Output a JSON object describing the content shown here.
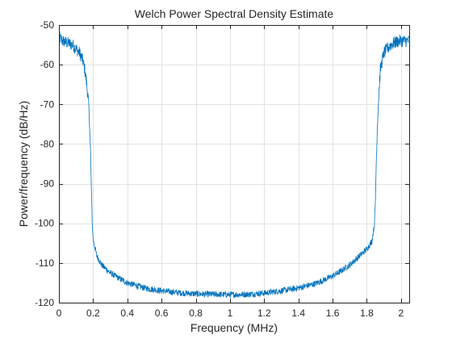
{
  "chart_data": {
    "type": "line",
    "title": "Welch Power Spectral Density Estimate",
    "xlabel": "Frequency (MHz)",
    "ylabel": "Power/frequency (dB/Hz)",
    "xlim": [
      0,
      2.048
    ],
    "ylim": [
      -120,
      -50
    ],
    "grid": true,
    "xticks": [
      0,
      0.2,
      0.4,
      0.6,
      0.8,
      1,
      1.2,
      1.4,
      1.6,
      1.8,
      2
    ],
    "xtick_labels": [
      "0",
      "0.2",
      "0.4",
      "0.6",
      "0.8",
      "1",
      "1.2",
      "1.4",
      "1.6",
      "1.8",
      "2"
    ],
    "yticks": [
      -120,
      -110,
      -100,
      -90,
      -80,
      -70,
      -60,
      -50
    ],
    "ytick_labels": [
      "-120",
      "-110",
      "-100",
      "-90",
      "-80",
      "-70",
      "-60",
      "-50"
    ],
    "colors": {
      "line": "#0072BD",
      "grid": "#e3e3e3",
      "axis": "#262626"
    },
    "series": [
      {
        "x": [
          0,
          0.02,
          0.05,
          0.08,
          0.1,
          0.12,
          0.14,
          0.15,
          0.16,
          0.17,
          0.175,
          0.18,
          0.185,
          0.19,
          0.195,
          0.2,
          0.21,
          0.22,
          0.25,
          0.3,
          0.35,
          0.4,
          0.5,
          0.6,
          0.7,
          0.8,
          0.9,
          1.0,
          1.1,
          1.2,
          1.3,
          1.4,
          1.5,
          1.6,
          1.65,
          1.7,
          1.75,
          1.8,
          1.83,
          1.845,
          1.85,
          1.855,
          1.86,
          1.865,
          1.87,
          1.875,
          1.88,
          1.89,
          1.9,
          1.92,
          1.94,
          1.96,
          1.99,
          2.02,
          2.048
        ],
        "y": [
          -53,
          -54,
          -54.5,
          -55,
          -56,
          -57,
          -59,
          -61,
          -64,
          -68,
          -71,
          -76,
          -82,
          -92,
          -100,
          -104,
          -106,
          -108,
          -110.5,
          -112.5,
          -113.8,
          -115,
          -116.3,
          -117,
          -117.5,
          -117.8,
          -117.9,
          -118,
          -117.9,
          -117.6,
          -117,
          -116.3,
          -115.2,
          -113.3,
          -112,
          -110.5,
          -108.5,
          -106.5,
          -104.5,
          -100,
          -95,
          -85,
          -78,
          -72,
          -68,
          -64,
          -61,
          -59,
          -57,
          -56,
          -55,
          -54.5,
          -54,
          -54,
          -54
        ]
      }
    ]
  }
}
